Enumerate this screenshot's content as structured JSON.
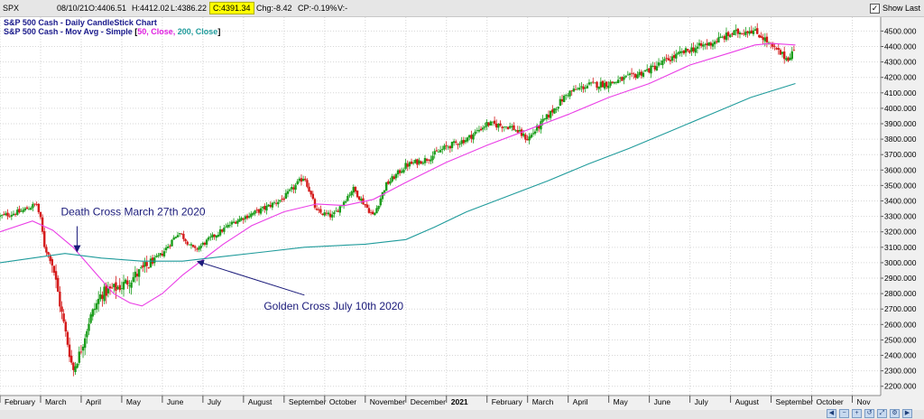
{
  "toolbar": {
    "symbol": "SPX",
    "date": "08/10/21",
    "open": "O:4406.51",
    "high": "H:4412.02",
    "low": "L:4386.22",
    "close": "C:4391.34",
    "change": "Chg:-8.42",
    "change_pct": "CP:-0.19%",
    "volume": "V:-",
    "show_last_label": "Show Last",
    "show_last_checked": true
  },
  "legend": {
    "line1": "S&P 500 Cash - Daily CandleStick Chart",
    "line2_prefix": "S&P 500 Cash - Mov Avg - Simple",
    "line2_bracket_open": "[",
    "line2_ma50": "50, Close,",
    "line2_ma200": "200, Close",
    "line2_bracket_close": "]"
  },
  "colors": {
    "up": "#1a9c1a",
    "down": "#d41a1a",
    "ma50": "#ea3ee6",
    "ma200": "#1f9b9b",
    "annotation": "#1a1a7a",
    "grid": "#d6d6d6",
    "background": "#ffffff"
  },
  "chart_data": {
    "type": "candlestick",
    "x_axis": {
      "labels": [
        "February",
        "March",
        "April",
        "May",
        "June",
        "July",
        "August",
        "September",
        "October",
        "November",
        "December",
        "2021",
        "February",
        "March",
        "April",
        "May",
        "June",
        "July",
        "August",
        "September",
        "October",
        "Nov"
      ],
      "bold": [
        false,
        false,
        false,
        false,
        false,
        false,
        false,
        false,
        false,
        false,
        false,
        true,
        false,
        false,
        false,
        false,
        false,
        false,
        false,
        false,
        false,
        false
      ]
    },
    "y_axis": {
      "ticks": [
        2200,
        2300,
        2400,
        2500,
        2600,
        2700,
        2800,
        2900,
        3000,
        3100,
        3200,
        3300,
        3400,
        3500,
        3600,
        3700,
        3800,
        3900,
        4000,
        4100,
        4200,
        4300,
        4400,
        4500
      ],
      "tick_labels": [
        "2200.000",
        "2300.000",
        "2400.000",
        "2500.000",
        "2600.000",
        "2700.000",
        "2800.000",
        "2900.000",
        "3000.000",
        "3100.000",
        "3200.000",
        "3300.000",
        "3400.000",
        "3500.000",
        "3600.000",
        "3700.000",
        "3800.000",
        "3900.000",
        "4000.000",
        "4100.000",
        "4200.000",
        "4300.000",
        "4400.000",
        "4500.000"
      ],
      "range": [
        2140,
        4590
      ]
    },
    "x_range": [
      0,
      21.7
    ],
    "price_path": [
      [
        0,
        3300
      ],
      [
        0.5,
        3330
      ],
      [
        0.9,
        3380
      ],
      [
        1.0,
        3280
      ],
      [
        1.1,
        3100
      ],
      [
        1.3,
        2990
      ],
      [
        1.5,
        2700
      ],
      [
        1.8,
        2300
      ],
      [
        2.0,
        2440
      ],
      [
        2.2,
        2630
      ],
      [
        2.5,
        2800
      ],
      [
        3.0,
        2850
      ],
      [
        3.5,
        2950
      ],
      [
        4.0,
        3060
      ],
      [
        4.4,
        3200
      ],
      [
        4.8,
        3080
      ],
      [
        5.2,
        3160
      ],
      [
        5.8,
        3270
      ],
      [
        6.5,
        3350
      ],
      [
        7.0,
        3420
      ],
      [
        7.5,
        3560
      ],
      [
        7.8,
        3330
      ],
      [
        8.2,
        3300
      ],
      [
        8.7,
        3480
      ],
      [
        9.2,
        3300
      ],
      [
        9.5,
        3500
      ],
      [
        10.0,
        3630
      ],
      [
        10.5,
        3670
      ],
      [
        11.0,
        3750
      ],
      [
        11.5,
        3800
      ],
      [
        12.0,
        3900
      ],
      [
        12.6,
        3880
      ],
      [
        13.0,
        3800
      ],
      [
        13.5,
        3950
      ],
      [
        14.0,
        4100
      ],
      [
        14.5,
        4150
      ],
      [
        15.0,
        4160
      ],
      [
        15.5,
        4200
      ],
      [
        16.0,
        4250
      ],
      [
        16.5,
        4320
      ],
      [
        17.0,
        4380
      ],
      [
        17.5,
        4420
      ],
      [
        18.0,
        4480
      ],
      [
        18.5,
        4510
      ],
      [
        18.8,
        4460
      ],
      [
        19.0,
        4400
      ],
      [
        19.2,
        4360
      ],
      [
        19.4,
        4320
      ],
      [
        19.6,
        4391
      ]
    ],
    "series": [
      {
        "name": "50, Close",
        "points": [
          [
            0,
            3200
          ],
          [
            0.8,
            3270
          ],
          [
            1.3,
            3210
          ],
          [
            1.8,
            3100
          ],
          [
            2.3,
            2950
          ],
          [
            2.8,
            2800
          ],
          [
            3.2,
            2740
          ],
          [
            3.5,
            2720
          ],
          [
            4.0,
            2800
          ],
          [
            4.5,
            2920
          ],
          [
            5.0,
            3020
          ],
          [
            5.5,
            3120
          ],
          [
            6.2,
            3240
          ],
          [
            7.0,
            3330
          ],
          [
            7.8,
            3380
          ],
          [
            8.5,
            3370
          ],
          [
            9.2,
            3410
          ],
          [
            10.0,
            3520
          ],
          [
            11.0,
            3650
          ],
          [
            12.0,
            3760
          ],
          [
            13.0,
            3860
          ],
          [
            14.0,
            3960
          ],
          [
            15.0,
            4070
          ],
          [
            16.0,
            4160
          ],
          [
            17.0,
            4280
          ],
          [
            18.0,
            4360
          ],
          [
            18.6,
            4410
          ],
          [
            19.0,
            4420
          ],
          [
            19.6,
            4410
          ]
        ]
      },
      {
        "name": "200, Close",
        "points": [
          [
            0,
            3000
          ],
          [
            0.8,
            3030
          ],
          [
            1.6,
            3060
          ],
          [
            2.5,
            3030
          ],
          [
            3.5,
            3010
          ],
          [
            4.5,
            3010
          ],
          [
            5.5,
            3040
          ],
          [
            6.5,
            3070
          ],
          [
            7.5,
            3100
          ],
          [
            9.0,
            3120
          ],
          [
            10.0,
            3150
          ],
          [
            10.7,
            3230
          ],
          [
            11.5,
            3330
          ],
          [
            12.5,
            3430
          ],
          [
            13.5,
            3530
          ],
          [
            14.5,
            3640
          ],
          [
            15.5,
            3740
          ],
          [
            16.5,
            3850
          ],
          [
            17.5,
            3960
          ],
          [
            18.5,
            4070
          ],
          [
            19.6,
            4160
          ]
        ]
      }
    ],
    "annotations": [
      {
        "text": "Death Cross March 27th 2020",
        "target": [
          1.9,
          3060
        ],
        "label_at": [
          1.5,
          3330
        ]
      },
      {
        "text": "Golden Cross July 10th 2020",
        "target": [
          4.8,
          3020
        ],
        "label_at": [
          6.5,
          2720
        ]
      }
    ],
    "grid": true,
    "legend_position": "top-left"
  }
}
